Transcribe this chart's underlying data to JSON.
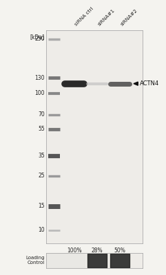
{
  "lane_labels": [
    "siRNA ctrl",
    "siRNA#1",
    "siRNA#2"
  ],
  "marker_bands": [
    {
      "kda": 250,
      "color": "#aaaaaa",
      "lw": 2.5
    },
    {
      "kda": 130,
      "color": "#777777",
      "lw": 3.5
    },
    {
      "kda": 100,
      "color": "#888888",
      "lw": 3.0
    },
    {
      "kda": 70,
      "color": "#999999",
      "lw": 2.5
    },
    {
      "kda": 55,
      "color": "#777777",
      "lw": 3.5
    },
    {
      "kda": 35,
      "color": "#555555",
      "lw": 4.5
    },
    {
      "kda": 25,
      "color": "#999999",
      "lw": 2.5
    },
    {
      "kda": 15,
      "color": "#555555",
      "lw": 5.0
    },
    {
      "kda": 10,
      "color": "#bbbbbb",
      "lw": 2.0
    }
  ],
  "marker_labels": [
    250,
    130,
    100,
    70,
    55,
    35,
    25,
    15,
    10
  ],
  "band_annotation": "ACTN4",
  "band_kda": 118,
  "percentages": [
    "100%",
    "28%",
    "50%"
  ],
  "loading_control_label": "Loading\nControl",
  "bg_color": "#f4f3ef",
  "gel_bg": "#eeece8",
  "text_color": "#222222"
}
